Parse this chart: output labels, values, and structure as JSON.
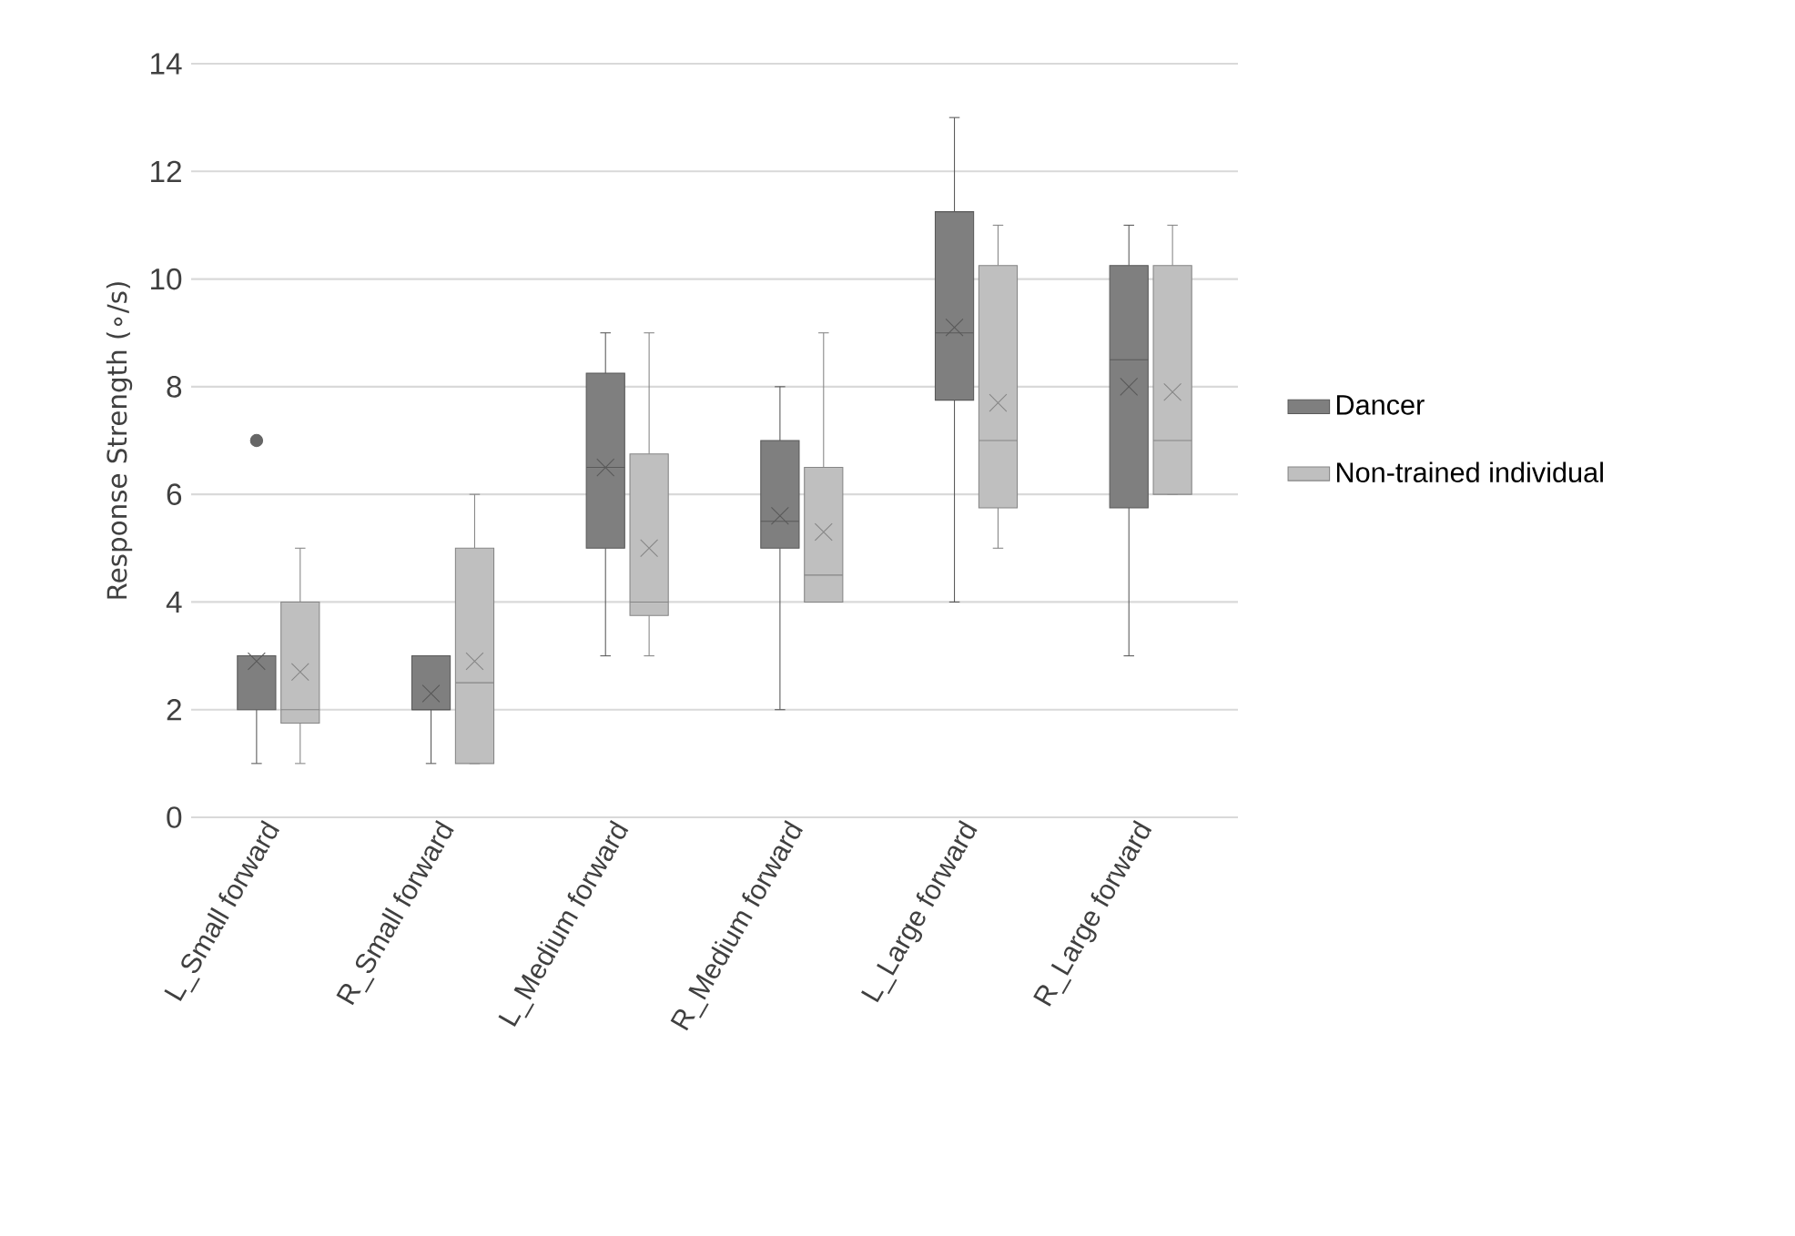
{
  "chart_data": {
    "type": "box",
    "ylabel": "Response Strength (∘/s)",
    "categories": [
      "L_Small forward",
      "R_Small forward",
      "L_Medium forward",
      "R_Medium forward",
      "L_Large forward",
      "R_Large forward"
    ],
    "series": [
      {
        "name": "Dancer",
        "color": "#7f7f7f",
        "boxes": [
          {
            "low": 1,
            "q1": 2,
            "median": 3,
            "q3": 3,
            "high": 3,
            "mean": 2.9,
            "outliers": [
              7
            ]
          },
          {
            "low": 1,
            "q1": 2,
            "median": 2,
            "q3": 3,
            "high": 3,
            "mean": 2.3
          },
          {
            "low": 3,
            "q1": 5,
            "median": 6.5,
            "q3": 8.25,
            "high": 9,
            "mean": 6.5
          },
          {
            "low": 2,
            "q1": 5,
            "median": 5.5,
            "q3": 7,
            "high": 8,
            "mean": 5.6
          },
          {
            "low": 4,
            "q1": 7.75,
            "median": 9,
            "q3": 11.25,
            "high": 13,
            "mean": 9.1
          },
          {
            "low": 3,
            "q1": 5.75,
            "median": 8.5,
            "q3": 10.25,
            "high": 11,
            "mean": 8
          }
        ]
      },
      {
        "name": "Non-trained individual",
        "color": "#bfbfbf",
        "boxes": [
          {
            "low": 1,
            "q1": 1.75,
            "median": 2,
            "q3": 4,
            "high": 5,
            "mean": 2.7
          },
          {
            "low": 1,
            "q1": 1,
            "median": 2.5,
            "q3": 5,
            "high": 6,
            "mean": 2.9
          },
          {
            "low": 3,
            "q1": 3.75,
            "median": 4,
            "q3": 6.75,
            "high": 9,
            "mean": 5
          },
          {
            "low": 4,
            "q1": 4,
            "median": 4.5,
            "q3": 6.5,
            "high": 9,
            "mean": 5.3
          },
          {
            "low": 5,
            "q1": 5.75,
            "median": 7,
            "q3": 10.25,
            "high": 11,
            "mean": 7.7
          },
          {
            "low": 6,
            "q1": 6,
            "median": 7,
            "q3": 10.25,
            "high": 11,
            "mean": 7.9
          }
        ]
      }
    ],
    "ylim": [
      0,
      14
    ],
    "yticks": [
      0,
      2,
      4,
      6,
      8,
      10,
      12,
      14
    ],
    "grid": "y",
    "legend": "right"
  }
}
